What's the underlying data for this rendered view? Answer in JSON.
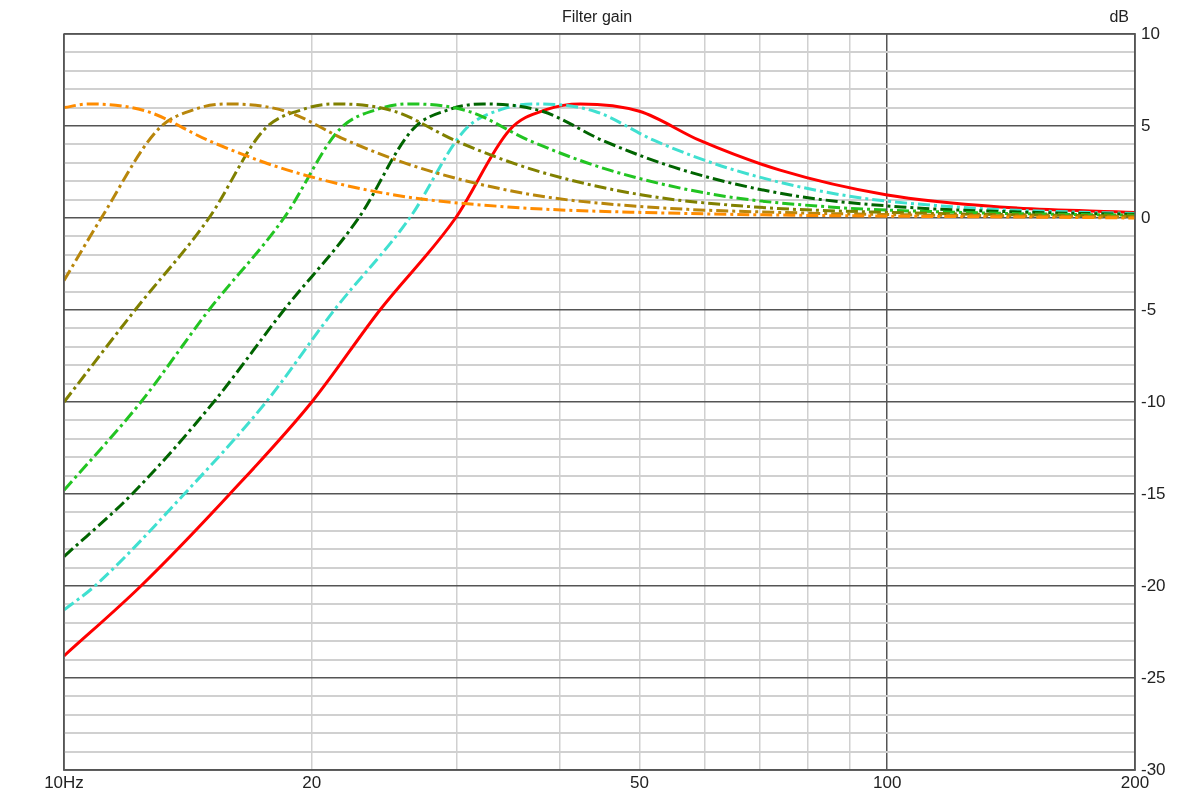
{
  "chart_data": {
    "type": "line",
    "title": "Filter gain",
    "ylabel": "dB",
    "log": "x",
    "grid": true,
    "legend": false,
    "marker": "none",
    "xlim": [
      10,
      200
    ],
    "xticks": [
      {
        "value": 10,
        "label": "10Hz"
      },
      20,
      {
        "value": 30,
        "label": null
      },
      {
        "value": 40,
        "label": null
      },
      50,
      {
        "value": 60,
        "label": null
      },
      {
        "value": 70,
        "label": null
      },
      {
        "value": 80,
        "label": null
      },
      {
        "value": 90,
        "label": null
      },
      100,
      200
    ],
    "ylim": [
      -30,
      10
    ],
    "yticks": [
      10,
      {
        "value": 9,
        "label": null
      },
      {
        "value": 8,
        "label": null
      },
      {
        "value": 7,
        "label": null
      },
      {
        "value": 6,
        "label": null
      },
      5,
      {
        "value": 4,
        "label": null
      },
      {
        "value": 3,
        "label": null
      },
      {
        "value": 2,
        "label": null
      },
      {
        "value": 1,
        "label": null
      },
      0,
      {
        "value": -1,
        "label": null
      },
      {
        "value": -2,
        "label": null
      },
      {
        "value": -3,
        "label": null
      },
      {
        "value": -4,
        "label": null
      },
      -5,
      {
        "value": -6,
        "label": null
      },
      {
        "value": -7,
        "label": null
      },
      {
        "value": -8,
        "label": null
      },
      {
        "value": -9,
        "label": null
      },
      -10,
      {
        "value": -11,
        "label": null
      },
      {
        "value": -12,
        "label": null
      },
      {
        "value": -13,
        "label": null
      },
      {
        "value": -14,
        "label": null
      },
      -15,
      {
        "value": -16,
        "label": null
      },
      {
        "value": -17,
        "label": null
      },
      {
        "value": -18,
        "label": null
      },
      {
        "value": -19,
        "label": null
      },
      -20,
      {
        "value": -21,
        "label": null
      },
      {
        "value": -22,
        "label": null
      },
      {
        "value": -23,
        "label": null
      },
      {
        "value": -24,
        "label": null
      },
      -25,
      {
        "value": -26,
        "label": null
      },
      {
        "value": -27,
        "label": null
      },
      {
        "value": -28,
        "label": null
      },
      {
        "value": -29,
        "label": null
      },
      -30
    ],
    "series": [
      {
        "color": "#ff8c00",
        "line_style": "dashed",
        "x": [
          10,
          10.7,
          12.6,
          15,
          18.7,
          25.2,
          34.6,
          50.5,
          200
        ],
        "values": [
          6.0,
          6.2,
          5.8,
          4.2,
          2.6,
          1.25,
          0.6,
          0.3,
          0
        ]
      },
      {
        "color": "#b8860b",
        "line_style": "dashed",
        "x": [
          10,
          11.1,
          13,
          14.4,
          15.8,
          18.6,
          22.1,
          27.6,
          37.2,
          51.1,
          74.5,
          200
        ],
        "values": [
          -3.4,
          0,
          4.8,
          5.9,
          6.2,
          5.8,
          4.2,
          2.6,
          1.25,
          0.6,
          0.3,
          0.05
        ]
      },
      {
        "color": "#808000",
        "line_style": "dashed",
        "x": [
          10,
          12.2,
          15,
          17.5,
          19.5,
          21.3,
          25.2,
          29.9,
          37.3,
          50.4,
          69,
          101,
          200
        ],
        "values": [
          -10,
          -5,
          0,
          4.8,
          5.9,
          6.2,
          5.8,
          4.2,
          2.6,
          1.25,
          0.6,
          0.3,
          0.1
        ]
      },
      {
        "color": "#22c422",
        "line_style": "dashed",
        "x": [
          10,
          12.4,
          15,
          18.5,
          21.6,
          24,
          26.3,
          31,
          36.8,
          46,
          62.1,
          85.1,
          124,
          200
        ],
        "values": [
          -14.8,
          -10,
          -5,
          0,
          4.8,
          5.9,
          6.2,
          5.8,
          4.2,
          2.6,
          1.25,
          0.6,
          0.3,
          0.15
        ]
      },
      {
        "color": "#006400",
        "line_style": "dashed",
        "x": [
          10,
          12.1,
          15.2,
          18.5,
          22.8,
          26.5,
          29.4,
          32.3,
          38.1,
          45.2,
          56.5,
          76.2,
          104,
          152,
          200
        ],
        "values": [
          -18.4,
          -15,
          -10,
          -5,
          0,
          4.8,
          5.9,
          6.2,
          5.8,
          4.2,
          2.6,
          1.25,
          0.6,
          0.3,
          0.2
        ]
      },
      {
        "color": "#40e0d0",
        "line_style": "dashed",
        "x": [
          10,
          10.9,
          14,
          17.6,
          21.3,
          26.3,
          30.7,
          34,
          37.3,
          44.1,
          52.2,
          65.3,
          88.1,
          121,
          176,
          200
        ],
        "values": [
          -21.3,
          -20,
          -15,
          -10,
          -5,
          0,
          4.8,
          5.9,
          6.2,
          5.8,
          4.2,
          2.6,
          1.25,
          0.6,
          0.3,
          0.25
        ]
      },
      {
        "color": "#ff0000",
        "line_style": "solid",
        "x": [
          10,
          12.4,
          15.9,
          20,
          24.2,
          29.9,
          34.8,
          38.6,
          42.4,
          50,
          59.3,
          74.1,
          100,
          137,
          200
        ],
        "values": [
          -23.8,
          -20,
          -15,
          -10,
          -5,
          0,
          4.8,
          5.9,
          6.2,
          5.8,
          4.2,
          2.6,
          1.25,
          0.6,
          0.3
        ]
      }
    ]
  }
}
